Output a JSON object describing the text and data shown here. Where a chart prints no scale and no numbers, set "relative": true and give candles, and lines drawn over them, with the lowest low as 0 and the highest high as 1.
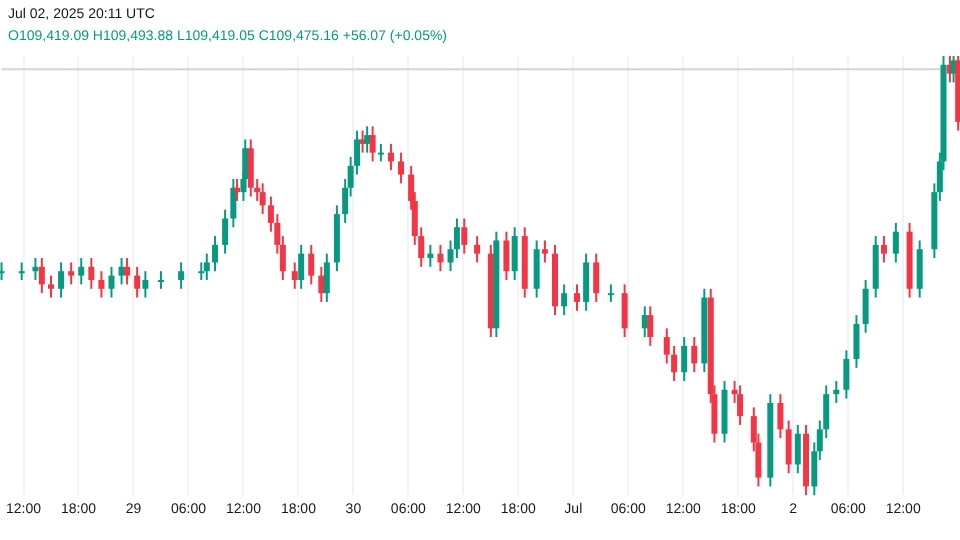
{
  "chart_data": {
    "type": "candlestick",
    "relative": true,
    "annotations": [
      "Jul 02, 2025 20:11 UTC",
      "O109,419.09 H109,493.88 L109,419.05 C109,475.16 +56.07 (+0.05%)"
    ],
    "x": [
      "2025-06-28T09:36",
      "2025-06-28T11:48",
      "2025-06-28T13:18",
      "2025-06-28T14:00",
      "2025-06-28T15:00",
      "2025-06-28T16:06",
      "2025-06-28T17:12",
      "2025-06-28T18:18",
      "2025-06-28T19:24",
      "2025-06-28T20:30",
      "2025-06-28T21:36",
      "2025-06-28T22:42",
      "2025-06-28T23:18",
      "2025-06-29T00:24",
      "2025-06-29T01:18",
      "2025-06-29T03:00",
      "2025-06-29T05:12",
      "2025-06-29T07:24",
      "2025-06-29T08:00",
      "2025-06-29T08:54",
      "2025-06-29T10:00",
      "2025-06-29T10:54",
      "2025-06-29T11:18",
      "2025-06-29T12:00",
      "2025-06-29T12:12",
      "2025-06-29T12:48",
      "2025-06-29T13:30",
      "2025-06-29T14:06",
      "2025-06-29T15:00",
      "2025-06-29T15:42",
      "2025-06-29T16:18",
      "2025-06-29T17:36",
      "2025-06-29T18:18",
      "2025-06-29T19:24",
      "2025-06-29T20:30",
      "2025-06-29T21:06",
      "2025-06-29T22:12",
      "2025-06-29T23:06",
      "2025-06-29T23:42",
      "2025-06-30T00:24",
      "2025-06-30T01:00",
      "2025-06-30T01:30",
      "2025-06-30T02:06",
      "2025-06-30T03:00",
      "2025-06-30T04:06",
      "2025-06-30T05:12",
      "2025-06-30T06:18",
      "2025-06-30T06:42",
      "2025-06-30T07:24",
      "2025-06-30T08:24",
      "2025-06-30T09:30",
      "2025-06-30T10:36",
      "2025-06-30T11:18",
      "2025-06-30T12:06",
      "2025-06-30T13:30",
      "2025-06-30T15:00",
      "2025-06-30T15:36",
      "2025-06-30T16:42",
      "2025-06-30T17:36",
      "2025-06-30T18:42",
      "2025-06-30T20:00",
      "2025-06-30T20:54",
      "2025-06-30T22:00",
      "2025-06-30T23:00",
      "2025-07-01T00:24",
      "2025-07-01T01:24",
      "2025-07-01T02:30",
      "2025-07-01T04:06",
      "2025-07-01T05:36",
      "2025-07-01T07:48",
      "2025-07-01T08:24",
      "2025-07-01T10:12",
      "2025-07-01T11:00",
      "2025-07-01T12:06",
      "2025-07-01T13:12",
      "2025-07-01T14:18",
      "2025-07-01T15:00",
      "2025-07-01T15:24",
      "2025-07-01T16:30",
      "2025-07-01T17:36",
      "2025-07-01T18:12",
      "2025-07-01T19:42",
      "2025-07-01T20:12",
      "2025-07-01T21:30",
      "2025-07-01T22:36",
      "2025-07-01T23:30",
      "2025-07-02T00:30",
      "2025-07-02T01:24",
      "2025-07-02T02:18",
      "2025-07-02T02:54",
      "2025-07-02T03:36",
      "2025-07-02T04:42",
      "2025-07-02T05:48",
      "2025-07-02T06:54",
      "2025-07-02T07:54",
      "2025-07-02T09:00",
      "2025-07-02T09:54",
      "2025-07-02T11:12",
      "2025-07-02T12:42",
      "2025-07-02T13:48",
      "2025-07-02T15:24",
      "2025-07-02T16:00",
      "2025-07-02T16:24",
      "2025-07-02T17:06",
      "2025-07-02T17:30",
      "2025-07-02T18:00"
    ],
    "ohlc": [
      [
        0.51,
        0.53,
        0.49,
        0.51
      ],
      [
        0.51,
        0.53,
        0.49,
        0.51
      ],
      [
        0.51,
        0.54,
        0.49,
        0.52
      ],
      [
        0.52,
        0.54,
        0.46,
        0.48
      ],
      [
        0.48,
        0.5,
        0.45,
        0.47
      ],
      [
        0.47,
        0.53,
        0.45,
        0.51
      ],
      [
        0.51,
        0.53,
        0.48,
        0.5
      ],
      [
        0.5,
        0.54,
        0.48,
        0.52
      ],
      [
        0.52,
        0.54,
        0.47,
        0.49
      ],
      [
        0.49,
        0.51,
        0.45,
        0.47
      ],
      [
        0.47,
        0.52,
        0.45,
        0.5
      ],
      [
        0.5,
        0.54,
        0.48,
        0.52
      ],
      [
        0.52,
        0.54,
        0.48,
        0.5
      ],
      [
        0.5,
        0.52,
        0.45,
        0.47
      ],
      [
        0.47,
        0.51,
        0.45,
        0.49
      ],
      [
        0.49,
        0.51,
        0.47,
        0.49
      ],
      [
        0.49,
        0.53,
        0.47,
        0.51
      ],
      [
        0.51,
        0.53,
        0.49,
        0.51
      ],
      [
        0.51,
        0.55,
        0.49,
        0.53
      ],
      [
        0.53,
        0.59,
        0.51,
        0.57
      ],
      [
        0.57,
        0.65,
        0.55,
        0.63
      ],
      [
        0.63,
        0.72,
        0.61,
        0.7
      ],
      [
        0.7,
        0.72,
        0.67,
        0.69
      ],
      [
        0.69,
        0.74,
        0.67,
        0.72
      ],
      [
        0.72,
        0.81,
        0.7,
        0.79
      ],
      [
        0.79,
        0.81,
        0.68,
        0.7
      ],
      [
        0.7,
        0.72,
        0.67,
        0.69
      ],
      [
        0.69,
        0.71,
        0.64,
        0.66
      ],
      [
        0.66,
        0.68,
        0.6,
        0.62
      ],
      [
        0.62,
        0.64,
        0.55,
        0.57
      ],
      [
        0.57,
        0.59,
        0.49,
        0.51
      ],
      [
        0.51,
        0.53,
        0.47,
        0.49
      ],
      [
        0.49,
        0.57,
        0.47,
        0.55
      ],
      [
        0.55,
        0.57,
        0.48,
        0.5
      ],
      [
        0.5,
        0.52,
        0.44,
        0.46
      ],
      [
        0.46,
        0.55,
        0.44,
        0.53
      ],
      [
        0.53,
        0.66,
        0.51,
        0.64
      ],
      [
        0.64,
        0.72,
        0.62,
        0.7
      ],
      [
        0.7,
        0.77,
        0.68,
        0.75
      ],
      [
        0.75,
        0.83,
        0.73,
        0.81
      ],
      [
        0.81,
        0.83,
        0.78,
        0.8
      ],
      [
        0.8,
        0.84,
        0.78,
        0.82
      ],
      [
        0.82,
        0.84,
        0.76,
        0.78
      ],
      [
        0.78,
        0.8,
        0.76,
        0.78
      ],
      [
        0.78,
        0.8,
        0.74,
        0.76
      ],
      [
        0.76,
        0.78,
        0.71,
        0.73
      ],
      [
        0.73,
        0.75,
        0.65,
        0.67
      ],
      [
        0.67,
        0.69,
        0.57,
        0.59
      ],
      [
        0.59,
        0.61,
        0.52,
        0.54
      ],
      [
        0.54,
        0.57,
        0.52,
        0.55
      ],
      [
        0.55,
        0.57,
        0.51,
        0.53
      ],
      [
        0.53,
        0.58,
        0.51,
        0.56
      ],
      [
        0.56,
        0.63,
        0.54,
        0.61
      ],
      [
        0.61,
        0.63,
        0.55,
        0.57
      ],
      [
        0.57,
        0.59,
        0.53,
        0.55
      ],
      [
        0.55,
        0.57,
        0.36,
        0.38
      ],
      [
        0.38,
        0.6,
        0.36,
        0.58
      ],
      [
        0.58,
        0.6,
        0.49,
        0.51
      ],
      [
        0.51,
        0.61,
        0.49,
        0.59
      ],
      [
        0.59,
        0.61,
        0.45,
        0.47
      ],
      [
        0.47,
        0.58,
        0.45,
        0.56
      ],
      [
        0.56,
        0.58,
        0.53,
        0.55
      ],
      [
        0.55,
        0.57,
        0.41,
        0.43
      ],
      [
        0.43,
        0.48,
        0.41,
        0.46
      ],
      [
        0.46,
        0.48,
        0.42,
        0.44
      ],
      [
        0.44,
        0.55,
        0.42,
        0.53
      ],
      [
        0.53,
        0.55,
        0.44,
        0.46
      ],
      [
        0.46,
        0.48,
        0.44,
        0.46
      ],
      [
        0.46,
        0.48,
        0.36,
        0.38
      ],
      [
        0.38,
        0.43,
        0.36,
        0.41
      ],
      [
        0.41,
        0.43,
        0.34,
        0.36
      ],
      [
        0.36,
        0.38,
        0.3,
        0.32
      ],
      [
        0.32,
        0.34,
        0.26,
        0.28
      ],
      [
        0.28,
        0.36,
        0.26,
        0.34
      ],
      [
        0.34,
        0.36,
        0.28,
        0.3
      ],
      [
        0.3,
        0.47,
        0.28,
        0.45
      ],
      [
        0.45,
        0.47,
        0.21,
        0.23
      ],
      [
        0.23,
        0.25,
        0.12,
        0.14
      ],
      [
        0.14,
        0.26,
        0.12,
        0.24
      ],
      [
        0.24,
        0.26,
        0.21,
        0.23
      ],
      [
        0.23,
        0.25,
        0.16,
        0.18
      ],
      [
        0.18,
        0.2,
        0.1,
        0.12
      ],
      [
        0.12,
        0.14,
        0.02,
        0.04
      ],
      [
        0.04,
        0.23,
        0.02,
        0.21
      ],
      [
        0.21,
        0.23,
        0.13,
        0.15
      ],
      [
        0.15,
        0.17,
        0.05,
        0.07
      ],
      [
        0.07,
        0.16,
        0.05,
        0.14
      ],
      [
        0.14,
        0.16,
        0,
        0.02
      ],
      [
        0.02,
        0.12,
        0,
        0.1
      ],
      [
        0.1,
        0.17,
        0.08,
        0.15
      ],
      [
        0.15,
        0.25,
        0.13,
        0.23
      ],
      [
        0.23,
        0.26,
        0.21,
        0.24
      ],
      [
        0.24,
        0.33,
        0.22,
        0.31
      ],
      [
        0.31,
        0.41,
        0.29,
        0.39
      ],
      [
        0.39,
        0.49,
        0.37,
        0.47
      ],
      [
        0.47,
        0.59,
        0.45,
        0.57
      ],
      [
        0.57,
        0.59,
        0.53,
        0.55
      ],
      [
        0.55,
        0.62,
        0.53,
        0.6
      ],
      [
        0.6,
        0.62,
        0.45,
        0.47
      ],
      [
        0.47,
        0.58,
        0.45,
        0.56
      ],
      [
        0.56,
        0.71,
        0.54,
        0.69
      ],
      [
        0.69,
        0.78,
        0.67,
        0.76
      ],
      [
        0.76,
        1,
        0.74,
        0.98
      ],
      [
        0.98,
        1,
        0.94,
        0.96
      ],
      [
        0.96,
        1,
        0.94,
        0.99
      ],
      [
        0.99,
        1,
        0.83,
        0.85
      ]
    ],
    "xlim": [
      "2025-06-28T09:36",
      "2025-07-02T18:12"
    ],
    "xticks": [
      {
        "value": "2025-06-28T12:00",
        "label": "12:00"
      },
      {
        "value": "2025-06-28T18:00",
        "label": "18:00"
      },
      {
        "value": "2025-06-29",
        "label": "29"
      },
      {
        "value": "2025-06-29T06:00",
        "label": "06:00"
      },
      {
        "value": "2025-06-29T12:00",
        "label": "12:00"
      },
      {
        "value": "2025-06-29T18:00",
        "label": "18:00"
      },
      {
        "value": "2025-06-30",
        "label": "30"
      },
      {
        "value": "2025-06-30T06:00",
        "label": "06:00"
      },
      {
        "value": "2025-06-30T12:00",
        "label": "12:00"
      },
      {
        "value": "2025-06-30T18:00",
        "label": "18:00"
      },
      {
        "value": "2025-07-01",
        "label": "Jul"
      },
      {
        "value": "2025-07-01T06:00",
        "label": "06:00"
      },
      {
        "value": "2025-07-01T12:00",
        "label": "12:00"
      },
      {
        "value": "2025-07-01T18:00",
        "label": "18:00"
      },
      {
        "value": "2025-07-02",
        "label": "2"
      },
      {
        "value": "2025-07-02T06:00",
        "label": "06:00"
      },
      {
        "value": "2025-07-02T12:00",
        "label": "12:00"
      }
    ],
    "ref_lines": [
      {
        "axis": "y",
        "value": 0.97,
        "color": "#d1d4dc",
        "line_style": "solid"
      }
    ],
    "grid": "x"
  }
}
